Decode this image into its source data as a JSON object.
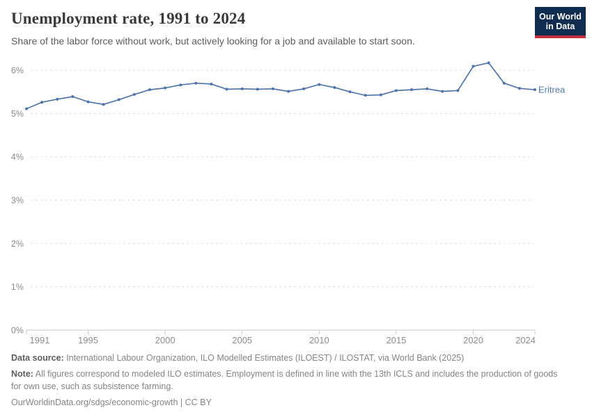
{
  "header": {
    "title": "Unemployment rate, 1991 to 2024",
    "subtitle": "Share of the labor force without work, but actively looking for a job and available to start soon.",
    "logo": {
      "line1": "Our World",
      "line2": "in Data",
      "bg_color": "#102d4f",
      "accent_color": "#c5303e"
    }
  },
  "chart_data": {
    "type": "line",
    "title": "Unemployment rate, 1991 to 2024",
    "xlabel": "",
    "ylabel": "",
    "x": [
      1991,
      1992,
      1993,
      1994,
      1995,
      1996,
      1997,
      1998,
      1999,
      2000,
      2001,
      2002,
      2003,
      2004,
      2005,
      2006,
      2007,
      2008,
      2009,
      2010,
      2011,
      2012,
      2013,
      2014,
      2015,
      2016,
      2017,
      2018,
      2019,
      2020,
      2021,
      2022,
      2023,
      2024
    ],
    "series": [
      {
        "name": "Eritrea",
        "values": [
          5.11,
          5.26,
          5.33,
          5.39,
          5.27,
          5.21,
          5.32,
          5.44,
          5.55,
          5.59,
          5.66,
          5.7,
          5.68,
          5.56,
          5.57,
          5.56,
          5.57,
          5.51,
          5.57,
          5.67,
          5.6,
          5.5,
          5.42,
          5.43,
          5.53,
          5.55,
          5.57,
          5.51,
          5.53,
          6.09,
          6.17,
          5.7,
          5.58,
          5.55
        ],
        "color": "#4f74ab"
      }
    ],
    "ylim": [
      0,
      6
    ],
    "yticks": [
      0,
      1,
      2,
      3,
      4,
      5,
      6
    ],
    "ytick_labels": [
      "0%",
      "1%",
      "2%",
      "3%",
      "4%",
      "5%",
      "6%"
    ],
    "xticks": [
      1991,
      1995,
      2000,
      2005,
      2010,
      2015,
      2020,
      2024
    ],
    "grid": "horizontal-dashed",
    "legend": "end-of-line-label",
    "grid_color": "#dcdcdc",
    "axis_color": "#c9c9c9",
    "tick_label_color": "#8c8c8c"
  },
  "footer": {
    "data_source_label": "Data source:",
    "data_source_text": " International Labour Organization, ILO Modelled Estimates (ILOEST) / ILOSTAT, via World Bank (2025)",
    "note_label": "Note:",
    "note_text": " All figures correspond to modeled ILO estimates. Employment is defined in line with the 13th ICLS and includes the production of goods for own use, such as subsistence farming.",
    "url": "OurWorldinData.org/sdgs/economic-growth | CC BY"
  }
}
